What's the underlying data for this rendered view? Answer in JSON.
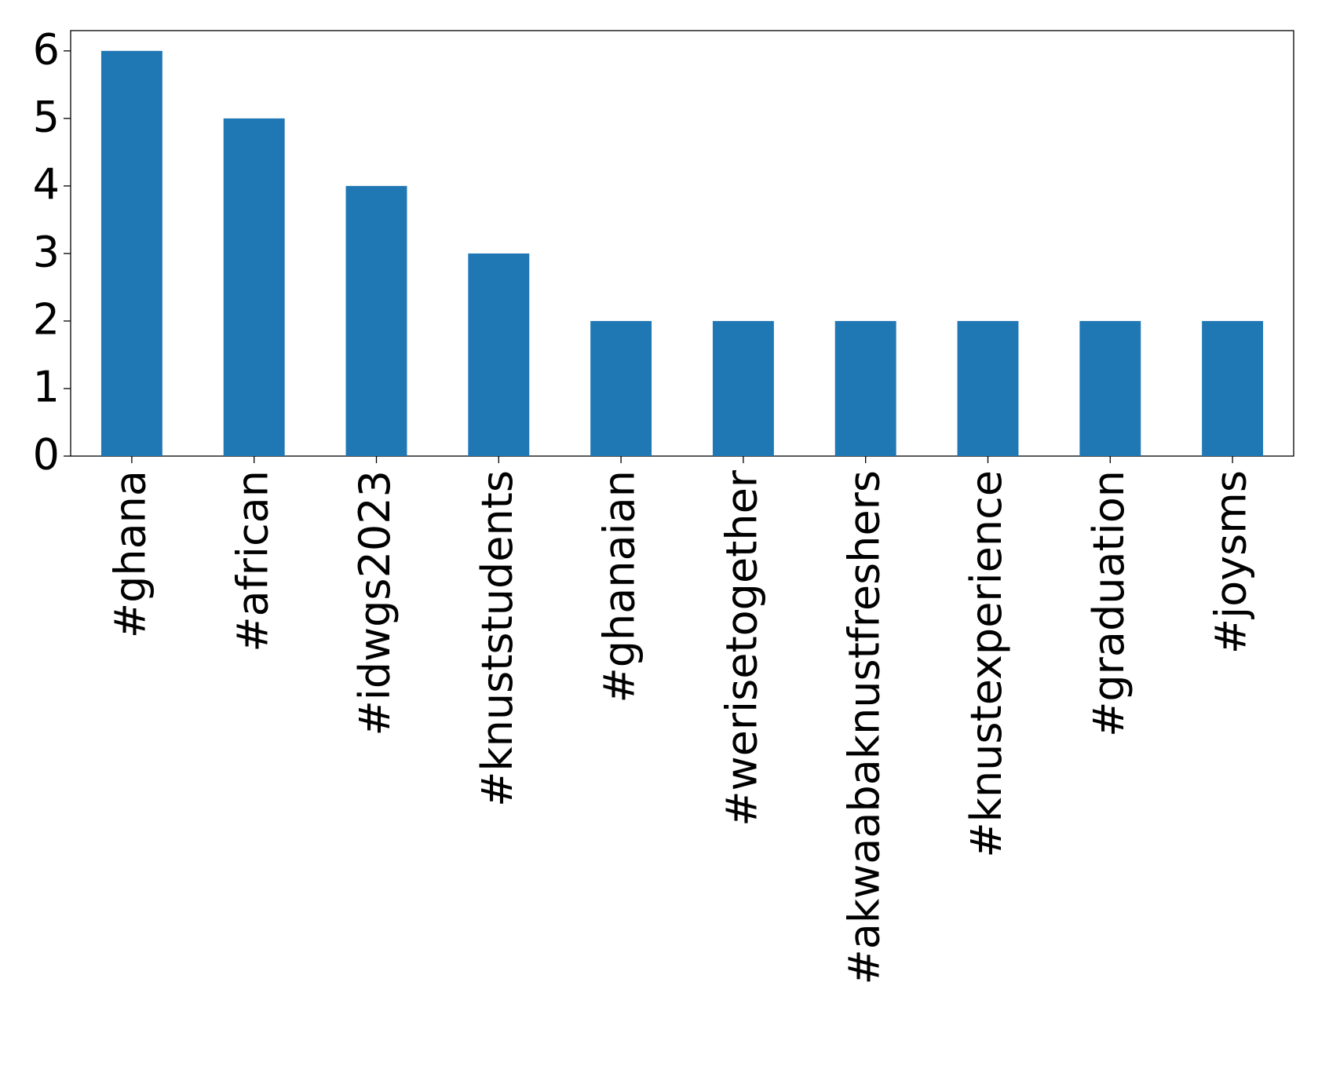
{
  "chart_data": {
    "type": "bar",
    "categories": [
      "#ghana",
      "#african",
      "#idwgs2023",
      "#knuststudents",
      "#ghanaian",
      "#werisetogether",
      "#akwaabaknustfreshers",
      "#knustexperience",
      "#graduation",
      "#joysms"
    ],
    "values": [
      6,
      5,
      4,
      3,
      2,
      2,
      2,
      2,
      2,
      2
    ],
    "color": "#1f77b4",
    "ylim": [
      0,
      6.3
    ],
    "yticks": [
      0,
      1,
      2,
      3,
      4,
      5,
      6
    ],
    "grid": false
  }
}
